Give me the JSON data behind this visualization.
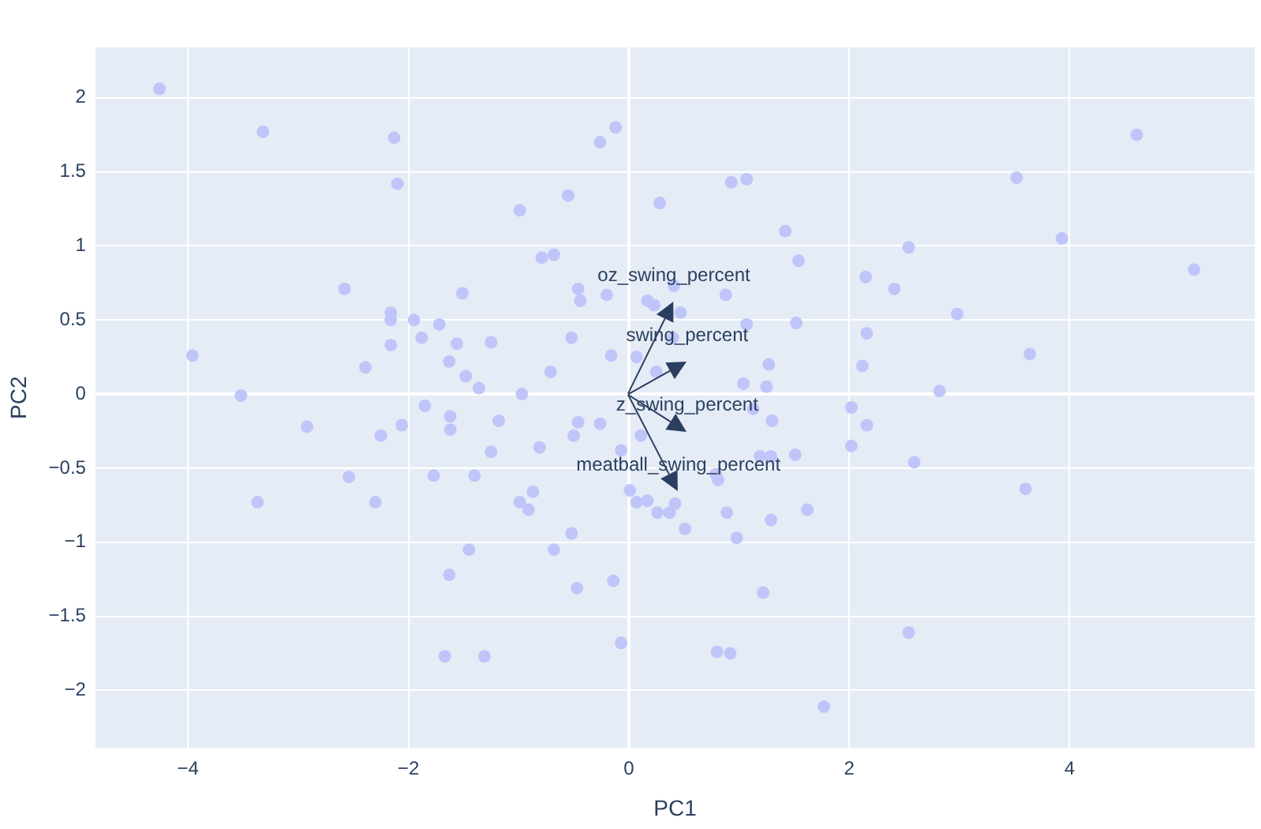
{
  "chart_data": {
    "type": "scatter",
    "xlabel": "PC1",
    "ylabel": "PC2",
    "xlim": [
      -4.84,
      5.68
    ],
    "ylim": [
      -2.39,
      2.34
    ],
    "xticks": [
      {
        "value": -4,
        "label": "−4"
      },
      {
        "value": -2,
        "label": "−2"
      },
      0,
      2,
      4
    ],
    "yticks": [
      {
        "value": -2,
        "label": "−2"
      },
      {
        "value": -1.5,
        "label": "−1.5"
      },
      {
        "value": -1,
        "label": "−1"
      },
      {
        "value": -0.5,
        "label": "−0.5"
      },
      0,
      0.5,
      1,
      1.5,
      2
    ],
    "grid": true,
    "legend": false,
    "marker": "circle",
    "series": [
      {
        "color": "#c0c5f9",
        "x": [
          -4.26,
          -3.32,
          -2.13,
          -2.1,
          -2.58,
          -1.51,
          -2.16,
          -2.16,
          -1.95,
          -1.72,
          -1.88,
          -2.16,
          -1.56,
          -1.63,
          -1.48,
          -1.36,
          -3.96,
          -2.39,
          -3.52,
          -0.12,
          -0.26,
          0.93,
          1.07,
          -0.55,
          -0.99,
          0.28,
          1.42,
          -0.79,
          -0.68,
          1.54,
          2.15,
          -0.46,
          -0.44,
          -0.2,
          0.41,
          0.17,
          0.23,
          0.47,
          0.88,
          1.07,
          1.52,
          -1.25,
          -0.52,
          0.4,
          -0.16,
          0.07,
          -0.71,
          0.25,
          1.27,
          2.16,
          2.12,
          1.04,
          1.25,
          -0.97,
          4.61,
          3.52,
          3.93,
          2.54,
          2.41,
          5.13,
          2.98,
          3.64,
          2.82,
          -2.06,
          -1.85,
          -1.62,
          -1.62,
          -1.77,
          -1.4,
          -1.45,
          -1.63,
          -1.67,
          -1.31,
          -2.92,
          -2.25,
          -2.54,
          -3.37,
          -2.3,
          -1.18,
          -0.46,
          -0.5,
          -0.26,
          -1.25,
          -0.81,
          -0.07,
          0.11,
          1.3,
          1.13,
          2.02,
          2.16,
          2.02,
          1.19,
          1.29,
          1.51,
          0.81,
          0.79,
          -0.87,
          -0.99,
          -0.91,
          0.01,
          0.07,
          0.17,
          0.42,
          0.26,
          0.37,
          0.51,
          0.89,
          1.29,
          1.62,
          0.98,
          -0.52,
          -0.68,
          -0.47,
          -0.14,
          1.22,
          -0.07,
          0.8,
          0.92,
          1.77,
          2.59,
          3.6,
          2.54
        ],
        "values": [
          2.06,
          1.77,
          1.73,
          1.42,
          0.71,
          0.68,
          0.55,
          0.5,
          0.5,
          0.47,
          0.38,
          0.33,
          0.34,
          0.22,
          0.12,
          0.04,
          0.26,
          0.18,
          -0.01,
          1.8,
          1.7,
          1.43,
          1.45,
          1.34,
          1.24,
          1.29,
          1.1,
          0.92,
          0.94,
          0.9,
          0.79,
          0.71,
          0.63,
          0.67,
          0.73,
          0.63,
          0.6,
          0.55,
          0.67,
          0.47,
          0.48,
          0.35,
          0.38,
          0.38,
          0.26,
          0.25,
          0.15,
          0.15,
          0.2,
          0.41,
          0.19,
          0.07,
          0.05,
          0.0,
          1.75,
          1.46,
          1.05,
          0.99,
          0.71,
          0.84,
          0.54,
          0.27,
          0.02,
          -0.21,
          -0.08,
          -0.15,
          -0.24,
          -0.55,
          -0.55,
          -1.05,
          -1.22,
          -1.77,
          -1.77,
          -0.22,
          -0.28,
          -0.56,
          -0.73,
          -0.73,
          -0.18,
          -0.19,
          -0.28,
          -0.2,
          -0.39,
          -0.36,
          -0.38,
          -0.28,
          -0.18,
          -0.1,
          -0.09,
          -0.21,
          -0.35,
          -0.42,
          -0.42,
          -0.41,
          -0.58,
          -0.54,
          -0.66,
          -0.73,
          -0.78,
          -0.65,
          -0.73,
          -0.72,
          -0.74,
          -0.8,
          -0.8,
          -0.91,
          -0.8,
          -0.85,
          -0.78,
          -0.97,
          -0.94,
          -1.05,
          -1.31,
          -1.26,
          -1.34,
          -1.68,
          -1.74,
          -1.75,
          -2.11,
          -0.46,
          -0.64,
          -1.61
        ]
      }
    ],
    "annotations": [
      "oz_swing_percent",
      "swing_percent",
      "z_swing_percent",
      "meatball_swing_percent"
    ]
  }
}
